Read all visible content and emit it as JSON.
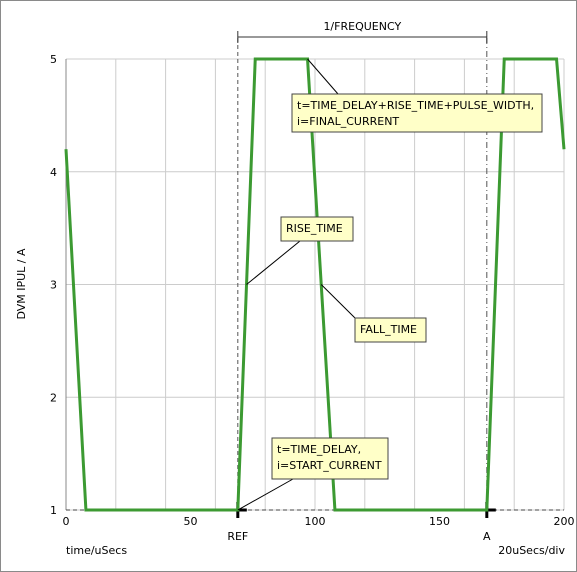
{
  "chart_data": {
    "type": "line",
    "xlabel": "time/uSecs",
    "ylabel": "DVM IPUL / A",
    "scale_label": "20uSecs/div",
    "xlim": [
      0,
      200
    ],
    "ylim": [
      1,
      5
    ],
    "x_ticks": [
      0,
      50,
      100,
      150,
      200
    ],
    "y_ticks": [
      1,
      2,
      3,
      4,
      5
    ],
    "x_grid_minor_step": 20,
    "grid": true,
    "colors": {
      "series": "#3c9a32",
      "grid": "#cccccc",
      "cursor": "#555555"
    },
    "series": [
      {
        "x": [
          0,
          8,
          69,
          76,
          97,
          108,
          169,
          176,
          197,
          200
        ],
        "y": [
          4.2,
          1,
          1,
          5,
          5,
          1,
          1,
          5,
          5,
          4.2
        ]
      }
    ],
    "cursors": [
      {
        "label": "REF",
        "x": 69,
        "style": "dashed"
      },
      {
        "label": "A",
        "x": 169,
        "style": "dashdot"
      }
    ],
    "dimension": {
      "label": "1/FREQUENCY",
      "from": 69,
      "to": 169
    },
    "annotations": [
      {
        "lines": [
          "t=TIME_DELAY+RISE_TIME+PULSE_WIDTH,",
          "i=FINAL_CURRENT"
        ],
        "target": [
          97,
          5
        ]
      },
      {
        "lines": [
          "RISE_TIME"
        ],
        "target": [
          72.5,
          3
        ]
      },
      {
        "lines": [
          "FALL_TIME"
        ],
        "target": [
          102.5,
          3
        ]
      },
      {
        "lines": [
          "t=TIME_DELAY,",
          "i=START_CURRENT"
        ],
        "target": [
          69,
          1
        ]
      }
    ]
  }
}
